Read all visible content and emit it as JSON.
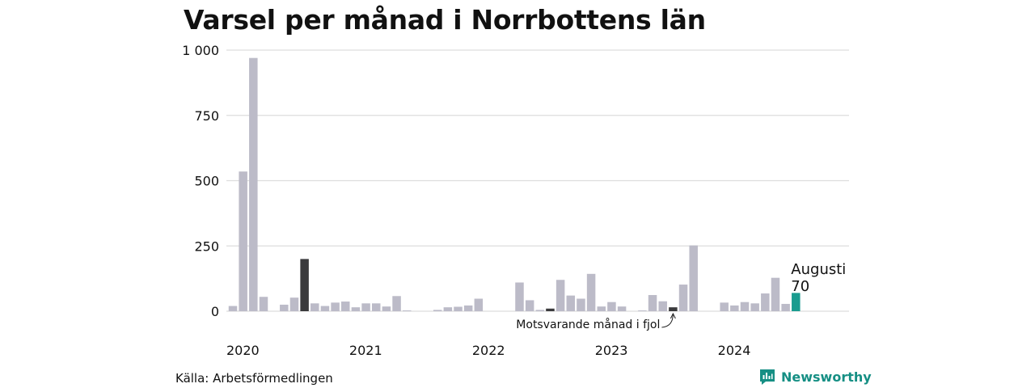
{
  "title": "Varsel per månad i Norrbottens län",
  "source": "Källa: Arbetsförmedlingen",
  "brand": "Newsworthy",
  "colors": {
    "default": "#bcbbc8",
    "same_month_last_year": "#3a3a3c",
    "current": "#1a9c8f",
    "grid": "#dddddd",
    "brand": "#168f84"
  },
  "chart_data": {
    "type": "bar",
    "title": "Varsel per månad i Norrbottens län",
    "ylim": [
      0,
      1000
    ],
    "yticks": [
      0,
      250,
      500,
      750,
      1000
    ],
    "ytick_labels": [
      "0",
      "250",
      "500",
      "750",
      "1 000"
    ],
    "xtick_labels": [
      "2020",
      "2021",
      "2022",
      "2023",
      "2024"
    ],
    "grid": true,
    "categories": [
      "2020-01",
      "2020-02",
      "2020-03",
      "2020-04",
      "2020-05",
      "2020-06",
      "2020-07",
      "2020-08",
      "2020-09",
      "2020-10",
      "2020-11",
      "2020-12",
      "2021-01",
      "2021-02",
      "2021-03",
      "2021-04",
      "2021-05",
      "2021-06",
      "2021-07",
      "2021-08",
      "2021-09",
      "2021-10",
      "2021-11",
      "2021-12",
      "2022-01",
      "2022-02",
      "2022-03",
      "2022-04",
      "2022-05",
      "2022-06",
      "2022-07",
      "2022-08",
      "2022-09",
      "2022-10",
      "2022-11",
      "2022-12",
      "2023-01",
      "2023-02",
      "2023-03",
      "2023-04",
      "2023-05",
      "2023-06",
      "2023-07",
      "2023-08",
      "2023-09",
      "2023-10",
      "2023-11",
      "2023-12",
      "2024-01",
      "2024-02",
      "2024-03",
      "2024-04",
      "2024-05",
      "2024-06",
      "2024-07",
      "2024-08"
    ],
    "values": [
      20,
      535,
      970,
      55,
      0,
      25,
      52,
      200,
      30,
      20,
      33,
      37,
      15,
      30,
      30,
      18,
      58,
      3,
      0,
      0,
      5,
      15,
      17,
      22,
      48,
      0,
      0,
      0,
      110,
      42,
      5,
      10,
      120,
      60,
      48,
      143,
      18,
      35,
      18,
      0,
      3,
      62,
      38,
      15,
      102,
      252,
      0,
      0,
      33,
      22,
      35,
      30,
      68,
      128,
      28,
      70
    ],
    "highlight": {
      "same_month_last_year": [
        "2020-08",
        "2022-08",
        "2023-08"
      ],
      "current": "2024-08"
    },
    "annotations": {
      "current_label": "Augusti",
      "current_value": "70",
      "last_year_note": "Motsvarande månad i fjol"
    }
  }
}
